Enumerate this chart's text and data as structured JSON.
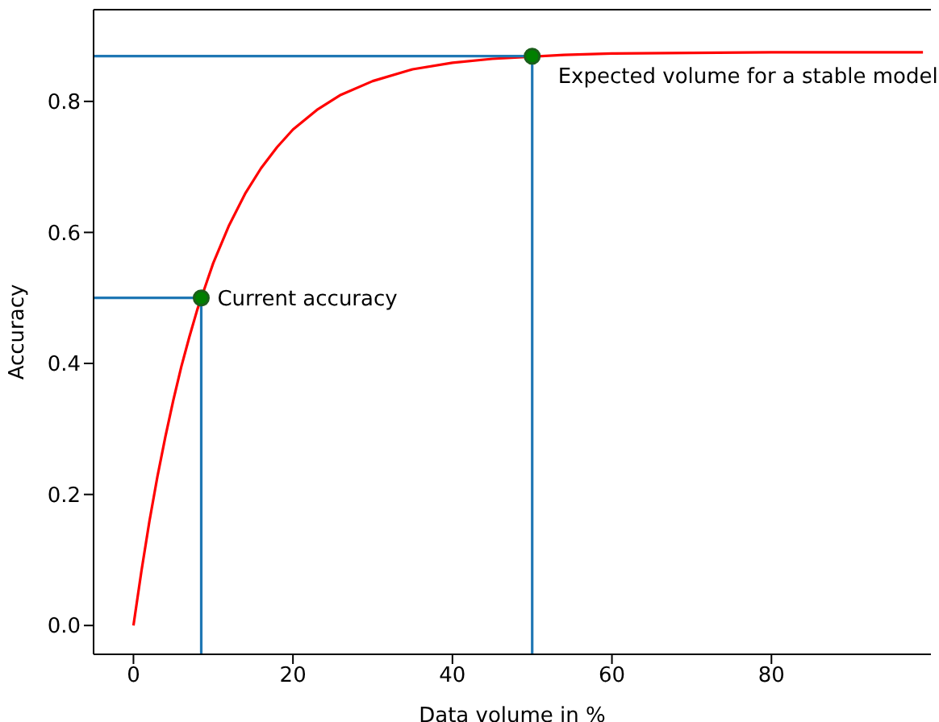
{
  "chart_data": {
    "type": "line",
    "xlabel": "Data volume in %",
    "ylabel": "Accuracy",
    "xlim": [
      -5,
      100
    ],
    "ylim": [
      -0.044,
      0.94
    ],
    "xticks": [
      0,
      20,
      40,
      60,
      80
    ],
    "yticks": [
      {
        "value": 0,
        "label": "0.0"
      },
      0.2,
      0.4,
      0.6,
      0.8
    ],
    "marker": "none",
    "line_style": "solid",
    "series": [
      {
        "color": "#ff0000",
        "x": [
          0,
          1,
          2,
          3,
          4,
          5,
          6,
          7,
          8,
          10,
          12,
          14,
          16,
          18,
          20,
          23,
          26,
          30,
          35,
          40,
          45,
          54,
          60,
          70,
          80,
          90,
          99
        ],
        "values": [
          0,
          0.083,
          0.159,
          0.227,
          0.288,
          0.344,
          0.395,
          0.44,
          0.482,
          0.553,
          0.611,
          0.659,
          0.698,
          0.73,
          0.757,
          0.787,
          0.81,
          0.831,
          0.849,
          0.859,
          0.865,
          0.871,
          0.873,
          0.874,
          0.875,
          0.875,
          0.875
        ]
      },
      {
        "color": "#1f77b4",
        "x": [
          -5,
          8.5,
          8.5
        ],
        "values": [
          0.5,
          0.5,
          -0.044
        ]
      },
      {
        "color": "#1f77b4",
        "x": [
          -5,
          50,
          50
        ],
        "values": [
          0.869,
          0.869,
          -0.044
        ]
      },
      {
        "type": "scatter",
        "color": "#008000",
        "marker": "circle",
        "x": [
          8.5,
          50
        ],
        "values": [
          0.5,
          0.869
        ]
      }
    ],
    "annotations": [
      {
        "text": "Current accuracy",
        "x": 8.5,
        "y": 0.5
      },
      {
        "text": "Expected volume for a stable model",
        "x": 50,
        "y": 0.869
      }
    ]
  }
}
